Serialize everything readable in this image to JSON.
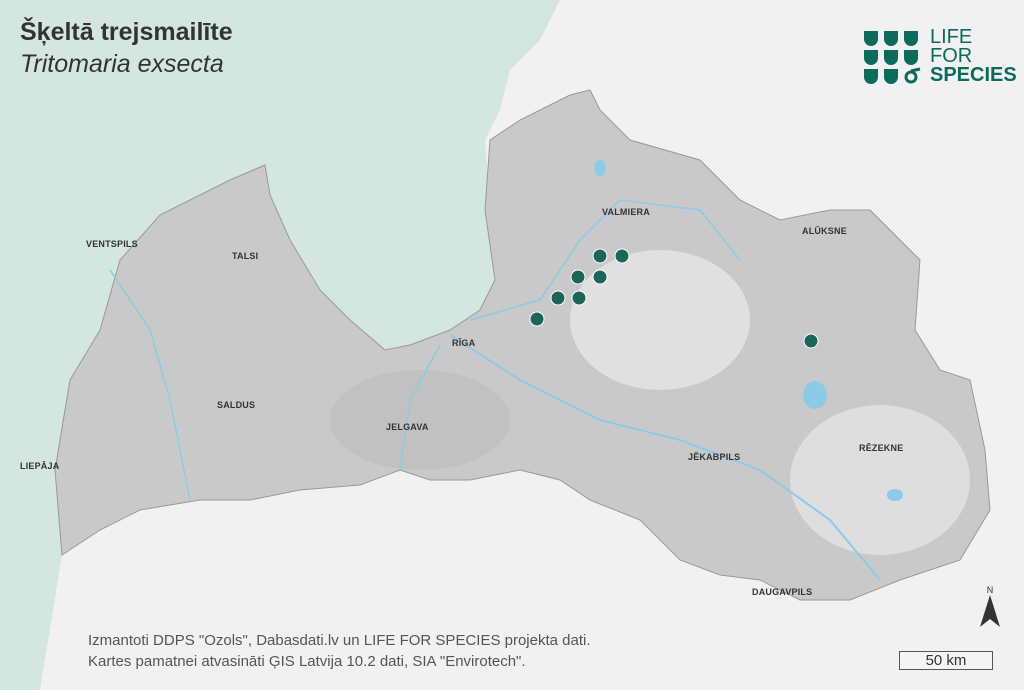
{
  "title": "Šķeltā trejsmailīte",
  "subtitle": "Tritomaria exsecta",
  "logo": {
    "line1": "LIFE",
    "line2": "FOR",
    "line3": "SPECIES",
    "color": "#0c6b5b"
  },
  "cities": [
    "VENTSPILS",
    "TALSI",
    "RĪGA",
    "VALMIERA",
    "ALŪKSNE",
    "SALDUS",
    "JELGAVA",
    "LIEPĀJA",
    "JĒKABPILS",
    "RĒZEKNE",
    "DAUGAVPILS"
  ],
  "occurrence_color": "#1c6657",
  "occurrence_count": 8,
  "credits": {
    "line1": "Izmantoti DDPS \"Ozols\", Dabasdati.lv un LIFE FOR SPECIES projekta dati.",
    "line2": "Kartes pamatnei atvasināti ĢIS Latvija 10.2 dati, SIA \"Envirotech\"."
  },
  "scale_bar": "50 km",
  "north_arrow": "N",
  "colors": {
    "sea": "#d3e6e0",
    "land": "#c9c9c9",
    "water": "#8ccbe6",
    "outside": "#f1f1f1"
  }
}
